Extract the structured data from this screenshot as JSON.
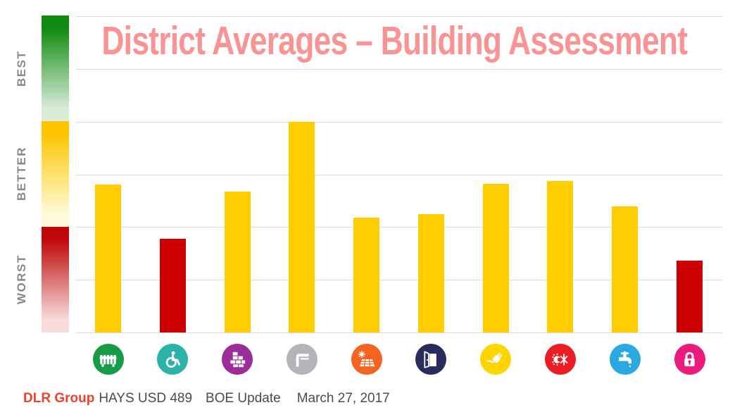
{
  "title": {
    "text": "District Averages – Building Assessment",
    "color": "#fa9393"
  },
  "scale": {
    "label_color": "#8a8a8a",
    "zones": [
      {
        "label": "BEST",
        "color_top": "#0f8b0f",
        "color_bottom": "#daecda"
      },
      {
        "label": "BETTER",
        "color_top": "#fdc500",
        "color_bottom": "#fffbda"
      },
      {
        "label": "WORST",
        "color_top": "#bf0808",
        "color_bottom": "#f9dcdc"
      }
    ]
  },
  "chart_data": {
    "type": "bar",
    "title": "District Averages – Building Assessment",
    "categories": [
      "heating",
      "accessibility",
      "masonry",
      "structure",
      "solar",
      "doors",
      "electrical",
      "hvac",
      "plumbing",
      "security"
    ],
    "values": [
      2.81,
      1.78,
      2.67,
      4.0,
      2.18,
      2.24,
      2.82,
      2.87,
      2.39,
      1.36
    ],
    "bar_colors": [
      "#FFCD00",
      "#CC0000",
      "#FFCD00",
      "#FFCD00",
      "#FFCD00",
      "#FFCD00",
      "#FFCD00",
      "#FFCD00",
      "#FFCD00",
      "#CC0000"
    ],
    "ylim": [
      0,
      6
    ],
    "gridline_count": 7,
    "grid_on": true,
    "xlabel": "",
    "ylabel": "",
    "rating_zones": {
      "WORST": [
        0,
        2
      ],
      "BETTER": [
        2,
        4
      ],
      "BEST": [
        4,
        6
      ]
    },
    "icons": [
      {
        "name": "heating-radiator-icon",
        "bg": "#179b47"
      },
      {
        "name": "accessibility-wheelchair-icon",
        "bg": "#2bb3a8"
      },
      {
        "name": "masonry-bricks-icon",
        "bg": "#9a2d9a"
      },
      {
        "name": "structure-frame-icon",
        "bg": "#b2b4b7"
      },
      {
        "name": "solar-panel-icon",
        "bg": "#f2641f"
      },
      {
        "name": "door-icon",
        "bg": "#2a2c60"
      },
      {
        "name": "electrical-plug-icon",
        "bg": "#ffd400"
      },
      {
        "name": "hvac-sun-snowflake-icon",
        "bg": "#ec1c24"
      },
      {
        "name": "plumbing-faucet-icon",
        "bg": "#29a9e0"
      },
      {
        "name": "security-padlock-icon",
        "bg": "#eb1a7d"
      }
    ]
  },
  "footer": {
    "brand": "DLR Group",
    "brand_color": "#f0402e",
    "items": [
      "HAYS USD 489",
      "BOE Update",
      "March 27, 2017"
    ]
  }
}
